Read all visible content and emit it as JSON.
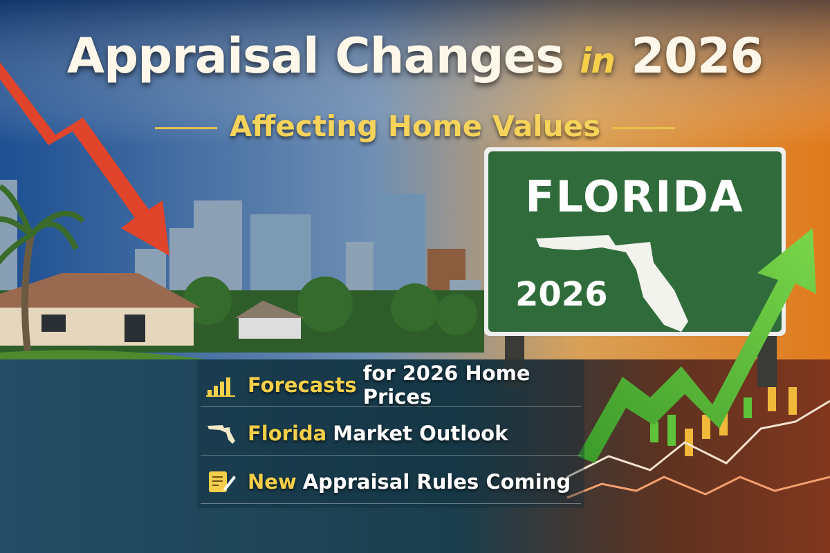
{
  "header": {
    "title": {
      "main": "Appraisal Changes",
      "connector": "in",
      "year": "2026"
    },
    "subtitle": "Affecting Home Values"
  },
  "sign": {
    "state": "FLORIDA",
    "year": "2026"
  },
  "features": [
    {
      "highlight": "Forecasts",
      "text": "for 2026 Home Prices"
    },
    {
      "highlight": "Florida",
      "text": "Market Outlook"
    },
    {
      "highlight": "New",
      "text": "Appraisal Rules Coming"
    }
  ]
}
